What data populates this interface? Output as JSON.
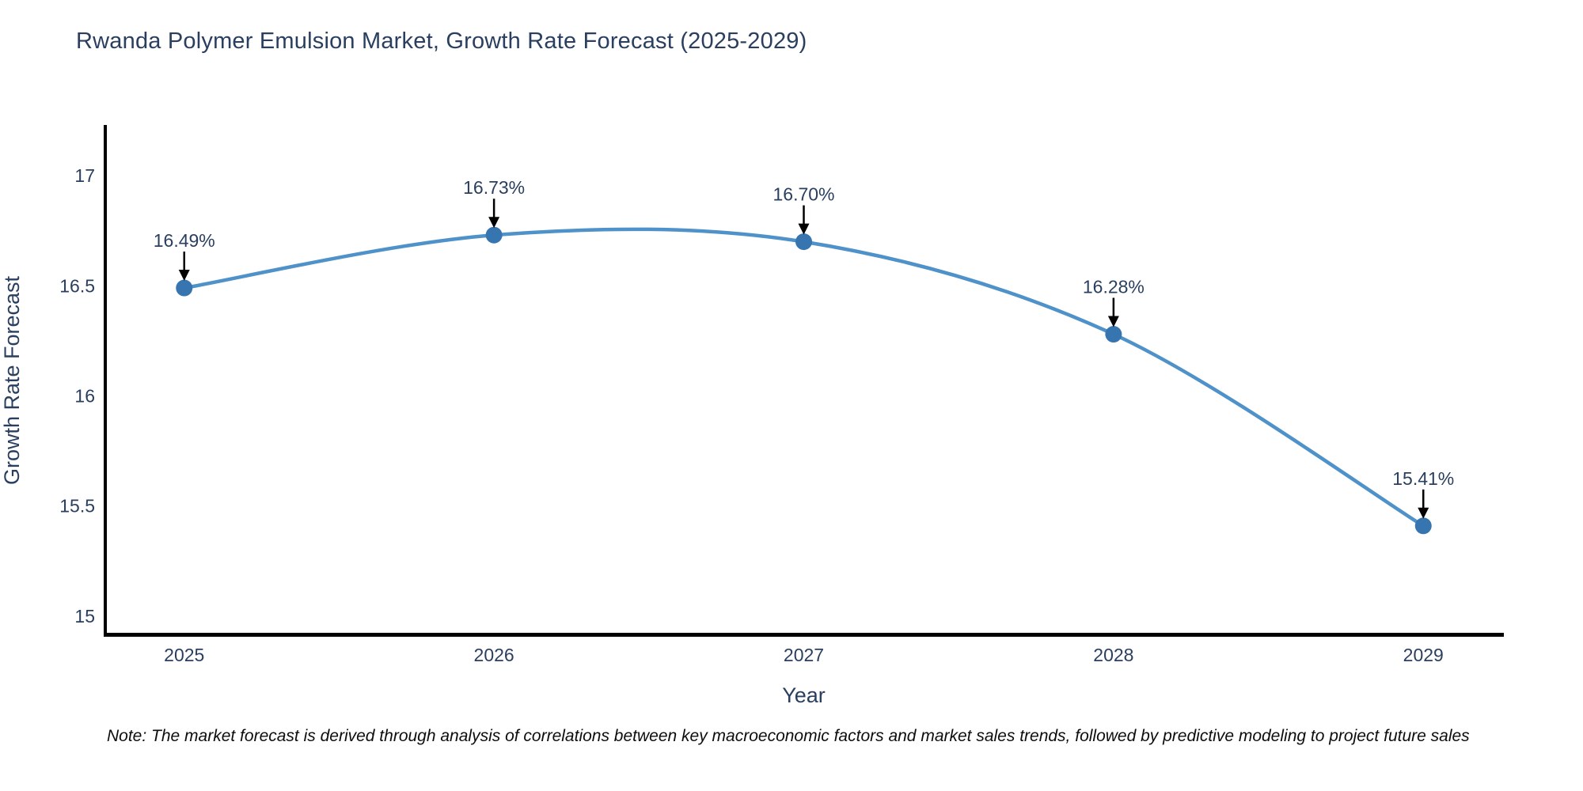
{
  "page": {
    "note": "Note: The market forecast is derived through analysis of correlations between key macroeconomic factors and market sales trends, followed by predictive modeling to project future sales"
  },
  "chart_data": {
    "type": "line",
    "title": "Rwanda Polymer Emulsion Market, Growth Rate Forecast (2025-2029)",
    "x": [
      2025,
      2026,
      2027,
      2028,
      2029
    ],
    "values": [
      16.49,
      16.73,
      16.7,
      16.28,
      15.41
    ],
    "point_labels": [
      "16.49%",
      "16.73%",
      "16.70%",
      "16.28%",
      "15.41%"
    ],
    "xlabel": "Year",
    "ylabel": "Growth Rate Forecast",
    "xtick_labels": [
      "2025",
      "2026",
      "2027",
      "2028",
      "2029"
    ],
    "ytick_values": [
      15,
      15.5,
      16,
      16.5,
      17
    ],
    "ytick_labels": [
      "15",
      "15.5",
      "16",
      "16.5",
      "17"
    ],
    "xlim": [
      2024.74,
      2029.26
    ],
    "ylim": [
      14.91,
      17.23
    ],
    "grid": false,
    "legend": "none",
    "line_shape": "spline",
    "colors": {
      "line": "#4e92c9",
      "marker": "#3675b0",
      "axis": "#000000",
      "text": "#2a3f5f",
      "annotation_text": "#2a3f5f",
      "annotation_arrow": "#000000",
      "note_text": "#0d0d0d"
    }
  }
}
